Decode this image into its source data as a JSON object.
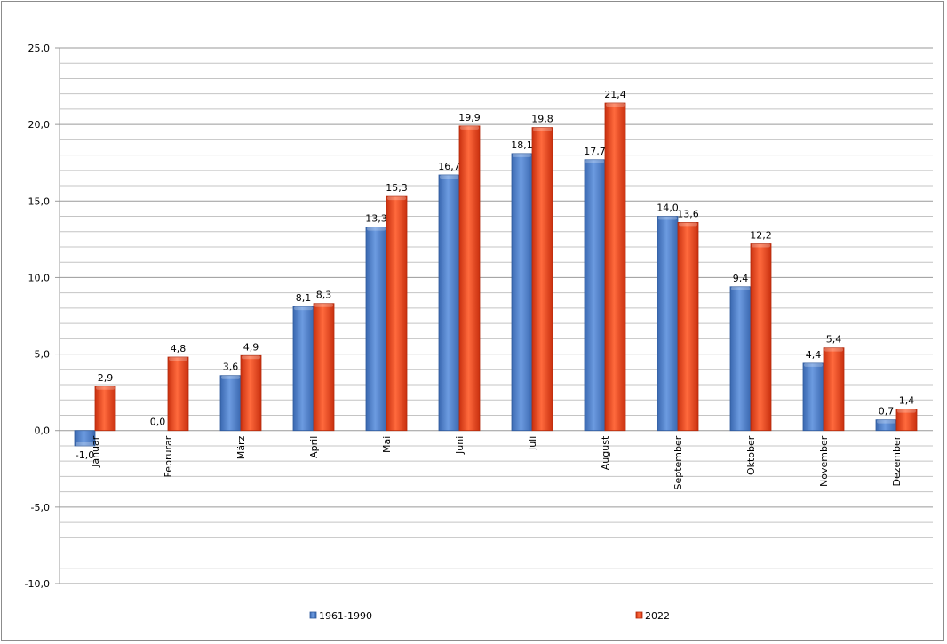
{
  "chart_data": {
    "type": "bar",
    "categories": [
      "Januar",
      "Februrar",
      "März",
      "April",
      "Mai",
      "Juni",
      "Juli",
      "August",
      "September",
      "Oktober",
      "November",
      "Dezember"
    ],
    "series": [
      {
        "name": "1961-1990",
        "color": "#4a7cc9",
        "values": [
          -1.0,
          0.0,
          3.6,
          8.1,
          13.3,
          16.7,
          18.1,
          17.7,
          14.0,
          9.4,
          4.4,
          0.7
        ],
        "labels": [
          "-1,0",
          "0,0",
          "3,6",
          "8,1",
          "13,3",
          "16,7",
          "18,1",
          "17,7",
          "14,0",
          "9,4",
          "4,4",
          "0,7"
        ]
      },
      {
        "name": "2022",
        "color": "#e8401c",
        "values": [
          2.9,
          4.8,
          4.9,
          8.3,
          15.3,
          19.9,
          19.8,
          21.4,
          13.6,
          12.2,
          5.4,
          1.4
        ],
        "labels": [
          "2,9",
          "4,8",
          "4,9",
          "8,3",
          "15,3",
          "19,9",
          "19,8",
          "21,4",
          "13,6",
          "12,2",
          "5,4",
          "1,4"
        ]
      }
    ],
    "ylim": [
      -10,
      25
    ],
    "yticks": [
      -10,
      -5,
      0,
      5,
      10,
      15,
      20,
      25
    ],
    "ytick_labels": [
      "-10,0",
      "-5,0",
      "0,0",
      "5,0",
      "10,0",
      "15,0",
      "20,0",
      "25,0"
    ],
    "minor_step": 1,
    "grid": true,
    "legend_position": "bottom",
    "title": "",
    "xlabel": "",
    "ylabel": ""
  }
}
